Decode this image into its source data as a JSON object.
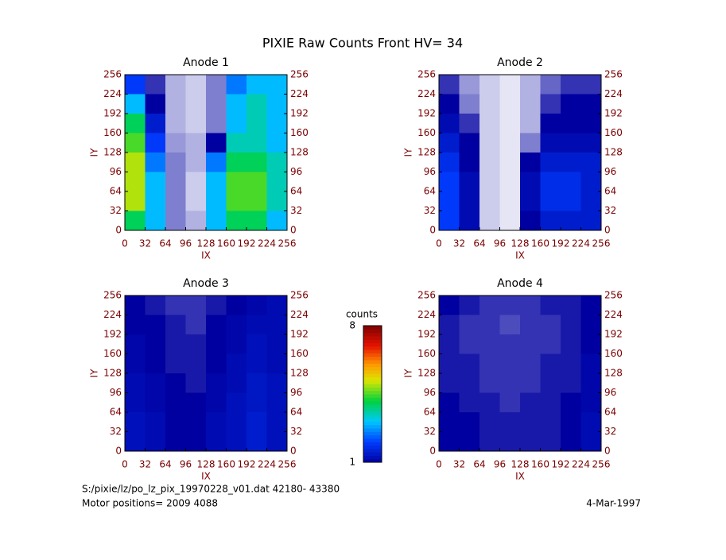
{
  "title": "PIXIE Raw Counts Front HV= 34",
  "colorbar": {
    "label": "counts",
    "zlim": [
      1,
      8
    ],
    "zticks": [
      1,
      8
    ]
  },
  "footer": {
    "file": "S:/pixie/lz/po_lz_pix_19970228_v01.dat   42180-  43380",
    "motor": "Motor positions= 2009 4088",
    "date": "4-Mar-1997"
  },
  "chart_data": [
    {
      "type": "heatmap",
      "title": "Anode 1",
      "xlabel": "IX",
      "ylabel": "IY",
      "xlim": [
        0,
        256
      ],
      "ylim": [
        0,
        256
      ],
      "y2lim": [
        0,
        256
      ],
      "xticks": [
        0,
        32,
        64,
        96,
        128,
        160,
        192,
        224,
        256
      ],
      "yticks": [
        0,
        32,
        64,
        96,
        128,
        160,
        192,
        224,
        256
      ],
      "y2ticks": [
        0,
        32,
        64,
        96,
        128,
        160,
        192,
        224,
        256
      ],
      "xbins": [
        0,
        32,
        64,
        96,
        128,
        160,
        192,
        224,
        256
      ],
      "ybins": [
        0,
        32,
        64,
        96,
        128,
        160,
        192,
        224,
        256
      ],
      "values": [
        [
          4,
          3,
          0.5,
          0.3,
          3,
          4,
          4,
          3
        ],
        [
          5,
          3,
          0.5,
          0.2,
          3,
          4.5,
          4.5,
          3.5
        ],
        [
          5,
          3,
          0.5,
          0.2,
          3,
          4.5,
          4.5,
          3.5
        ],
        [
          5,
          2.5,
          0.5,
          0.3,
          2.5,
          4,
          4,
          3.5
        ],
        [
          4.5,
          2,
          0.4,
          0.3,
          1,
          3.5,
          3.5,
          3
        ],
        [
          4,
          1.5,
          0.3,
          0.2,
          0.5,
          3,
          3.5,
          3
        ],
        [
          3,
          1,
          0.3,
          0.2,
          0.5,
          3,
          3.5,
          3
        ],
        [
          2,
          0.8,
          0.3,
          0.2,
          0.5,
          2.5,
          3,
          3
        ]
      ]
    },
    {
      "type": "heatmap",
      "title": "Anode 2",
      "xlabel": "IX",
      "ylabel": "IY",
      "xlim": [
        0,
        256
      ],
      "ylim": [
        0,
        256
      ],
      "y2lim": [
        0,
        256
      ],
      "xticks": [
        0,
        32,
        64,
        96,
        128,
        160,
        192,
        224,
        256
      ],
      "yticks": [
        0,
        32,
        64,
        96,
        128,
        160,
        192,
        224,
        256
      ],
      "y2ticks": [
        0,
        32,
        64,
        96,
        128,
        160,
        192,
        224,
        256
      ],
      "xbins": [
        0,
        32,
        64,
        96,
        128,
        160,
        192,
        224,
        256
      ],
      "ybins": [
        0,
        32,
        64,
        96,
        128,
        160,
        192,
        224,
        256
      ],
      "values": [
        [
          2,
          1.2,
          0.2,
          0.1,
          1,
          1.5,
          1.5,
          1.5
        ],
        [
          2,
          1.2,
          0.2,
          0.1,
          1.2,
          1.8,
          1.8,
          1.5
        ],
        [
          2,
          1.2,
          0.2,
          0.1,
          1.2,
          1.8,
          1.8,
          1.5
        ],
        [
          1.8,
          1,
          0.2,
          0.1,
          1,
          1.5,
          1.5,
          1.5
        ],
        [
          1.5,
          1,
          0.2,
          0.1,
          0.5,
          1.2,
          1.2,
          1.2
        ],
        [
          1.2,
          0.8,
          0.2,
          0.1,
          0.3,
          1,
          1,
          1
        ],
        [
          1,
          0.5,
          0.2,
          0.1,
          0.3,
          0.8,
          1,
          1
        ],
        [
          0.8,
          0.4,
          0.2,
          0.1,
          0.3,
          0.6,
          0.8,
          0.8
        ]
      ]
    },
    {
      "type": "heatmap",
      "title": "Anode 3",
      "xlabel": "IX",
      "ylabel": "IY",
      "xlim": [
        0,
        256
      ],
      "ylim": [
        0,
        256
      ],
      "y2lim": [
        0,
        256
      ],
      "xticks": [
        0,
        32,
        64,
        96,
        128,
        160,
        192,
        224,
        256
      ],
      "yticks": [
        0,
        32,
        64,
        96,
        128,
        160,
        192,
        224,
        256
      ],
      "y2ticks": [
        0,
        32,
        64,
        96,
        128,
        160,
        192,
        224,
        256
      ],
      "xbins": [
        0,
        32,
        64,
        96,
        128,
        160,
        192,
        224,
        256
      ],
      "ybins": [
        0,
        32,
        64,
        96,
        128,
        160,
        192,
        224,
        256
      ],
      "values": [
        [
          1.3,
          1.2,
          1,
          1,
          1.2,
          1.3,
          1.5,
          1.3
        ],
        [
          1.3,
          1.2,
          1,
          1,
          1.2,
          1.3,
          1.5,
          1.3
        ],
        [
          1.2,
          1.1,
          1,
          1,
          1.1,
          1.3,
          1.4,
          1.3
        ],
        [
          1.2,
          1.1,
          1,
          0.9,
          1.1,
          1.2,
          1.4,
          1.3
        ],
        [
          1.1,
          1,
          0.9,
          0.9,
          1,
          1.2,
          1.3,
          1.2
        ],
        [
          1.1,
          1,
          0.9,
          0.9,
          1,
          1.1,
          1.3,
          1.2
        ],
        [
          1,
          1,
          0.9,
          0.8,
          1,
          1.1,
          1.2,
          1.2
        ],
        [
          1,
          0.9,
          0.8,
          0.8,
          0.9,
          1,
          1.1,
          1.2
        ]
      ]
    },
    {
      "type": "heatmap",
      "title": "Anode 4",
      "xlabel": "IX",
      "ylabel": "IY",
      "xlim": [
        0,
        256
      ],
      "ylim": [
        0,
        256
      ],
      "y2lim": [
        0,
        256
      ],
      "xticks": [
        0,
        32,
        64,
        96,
        128,
        160,
        192,
        224,
        256
      ],
      "yticks": [
        0,
        32,
        64,
        96,
        128,
        160,
        192,
        224,
        256
      ],
      "y2ticks": [
        0,
        32,
        64,
        96,
        128,
        160,
        192,
        224,
        256
      ],
      "xbins": [
        0,
        32,
        64,
        96,
        128,
        160,
        192,
        224,
        256
      ],
      "ybins": [
        0,
        32,
        64,
        96,
        128,
        160,
        192,
        224,
        256
      ],
      "values": [
        [
          1,
          1,
          0.9,
          0.9,
          0.9,
          0.9,
          1,
          1.2
        ],
        [
          1,
          1,
          0.9,
          0.9,
          0.9,
          0.9,
          1,
          1.2
        ],
        [
          1,
          0.9,
          0.9,
          0.8,
          0.9,
          0.9,
          1,
          1.1
        ],
        [
          0.9,
          0.9,
          0.8,
          0.8,
          0.8,
          0.9,
          0.9,
          1.1
        ],
        [
          0.9,
          0.9,
          0.8,
          0.8,
          0.8,
          0.9,
          0.9,
          1.1
        ],
        [
          0.9,
          0.8,
          0.8,
          0.8,
          0.8,
          0.8,
          0.9,
          1
        ],
        [
          0.9,
          0.8,
          0.8,
          0.7,
          0.8,
          0.8,
          0.9,
          1
        ],
        [
          1,
          0.9,
          0.8,
          0.8,
          0.8,
          0.9,
          0.9,
          1
        ]
      ]
    }
  ]
}
